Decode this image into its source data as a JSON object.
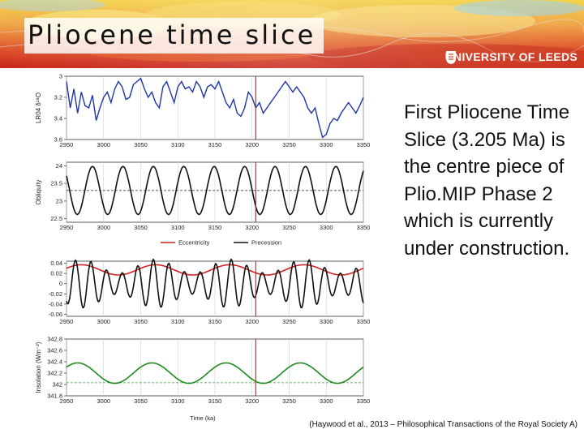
{
  "header": {
    "title": "Pliocene time slice",
    "logo_text": "UNIVERSITY OF LEEDS"
  },
  "body_text": "First Pliocene Time Slice (3.205 Ma) is the centre piece of Plio.MIP Phase 2 which is currently under construction.",
  "citation": "(Haywood et al., 2013 – Philosophical Transactions of the Royal Society A)",
  "chart_data": {
    "type": "line",
    "x_axis": {
      "range": [
        2950,
        3350
      ],
      "tick_labels": [
        "2950",
        "3000",
        "3050",
        "3100",
        "3150",
        "3200",
        "3250",
        "3300",
        "3350"
      ],
      "label": "Time (ka)"
    },
    "highlight_line_x": 3205,
    "panels": [
      {
        "ylabel": "LR04 δ¹⁸O",
        "ylim": [
          3.6,
          3.0
        ],
        "inverted": true,
        "yticks": [
          "3",
          "3.2",
          "3.4",
          "3.6"
        ],
        "series": [
          {
            "name": "LR04",
            "color": "#2035a8",
            "x": [
              2950,
              2955,
              2960,
              2965,
              2970,
              2975,
              2980,
              2985,
              2990,
              2995,
              3000,
              3005,
              3010,
              3015,
              3020,
              3025,
              3030,
              3035,
              3040,
              3045,
              3050,
              3055,
              3060,
              3065,
              3070,
              3075,
              3080,
              3085,
              3090,
              3095,
              3100,
              3105,
              3110,
              3115,
              3120,
              3125,
              3130,
              3135,
              3140,
              3145,
              3150,
              3155,
              3160,
              3165,
              3170,
              3175,
              3180,
              3185,
              3190,
              3195,
              3200,
              3205,
              3210,
              3215,
              3220,
              3225,
              3230,
              3235,
              3240,
              3245,
              3250,
              3255,
              3260,
              3265,
              3270,
              3275,
              3280,
              3285,
              3290,
              3295,
              3300,
              3305,
              3310,
              3315,
              3320,
              3325,
              3330,
              3335,
              3340,
              3345,
              3350
            ],
            "y": [
              3.05,
              3.3,
              3.12,
              3.35,
              3.15,
              3.28,
              3.3,
              3.18,
              3.42,
              3.3,
              3.2,
              3.15,
              3.25,
              3.12,
              3.05,
              3.1,
              3.22,
              3.2,
              3.08,
              3.05,
              3.02,
              3.12,
              3.2,
              3.15,
              3.25,
              3.3,
              3.1,
              3.05,
              3.15,
              3.25,
              3.1,
              3.05,
              3.12,
              3.1,
              3.15,
              3.05,
              3.1,
              3.2,
              3.1,
              3.08,
              3.12,
              3.05,
              3.15,
              3.25,
              3.3,
              3.22,
              3.35,
              3.38,
              3.3,
              3.15,
              3.2,
              3.3,
              3.25,
              3.35,
              3.3,
              3.25,
              3.2,
              3.15,
              3.1,
              3.05,
              3.1,
              3.15,
              3.1,
              3.15,
              3.2,
              3.3,
              3.35,
              3.3,
              3.45,
              3.58,
              3.55,
              3.45,
              3.4,
              3.42,
              3.35,
              3.3,
              3.25,
              3.3,
              3.35,
              3.28,
              3.2
            ]
          }
        ]
      },
      {
        "ylabel": "Obliquity",
        "ylim": [
          22.4,
          24.1
        ],
        "yticks": [
          "22.5",
          "23",
          "23.5",
          "24"
        ],
        "dashed_level": 23.3,
        "series": [
          {
            "name": "Obliquity",
            "color": "#111111",
            "wave": {
              "mean": 23.3,
              "amplitude": 0.68,
              "period": 41,
              "phase_at": 2985
            }
          }
        ]
      },
      {
        "ylabel": "",
        "ylim": [
          -0.064,
          0.044
        ],
        "yticks": [
          "0.04",
          "0.02",
          "0",
          "-0.02",
          "-0.04",
          "-0.06"
        ],
        "series": [
          {
            "name": "Eccentricity",
            "color": "#d42020",
            "wave": {
              "mean": 0.027,
              "amplitude": 0.01,
              "period": 100,
              "phase_at": 3070
            }
          },
          {
            "name": "Precession",
            "color": "#111111",
            "wave": {
              "mean": 0.0,
              "amplitude": 0.034,
              "period": 21,
              "phase_at": 2962,
              "envelope_mean": 1.0,
              "envelope_amplitude": 0.4,
              "envelope_period": 100,
              "envelope_phase_at": 3070
            }
          }
        ]
      },
      {
        "ylabel": "Insolation (Wm⁻²)",
        "ylim": [
          341.8,
          342.8
        ],
        "yticks": [
          "342.8",
          "342.6",
          "342.4",
          "342.2",
          "342",
          "341.8"
        ],
        "dashed_level": 342.03,
        "series": [
          {
            "name": "Insolation",
            "color": "#1e8a1e",
            "wave": {
              "mean": 342.2,
              "amplitude": 0.18,
              "period": 100,
              "phase_at": 3065
            }
          }
        ]
      }
    ],
    "legend": [
      "Eccentricity",
      "Precession"
    ]
  }
}
